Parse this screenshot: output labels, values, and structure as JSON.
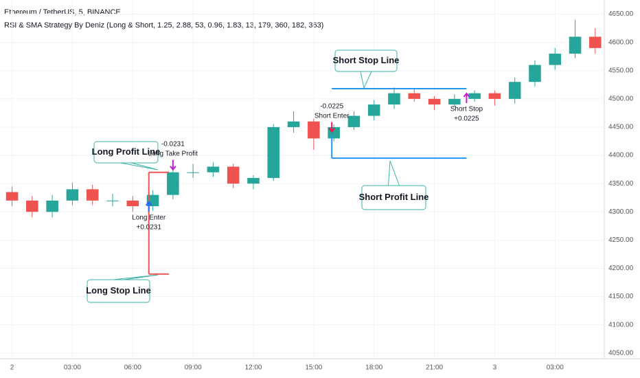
{
  "header": {
    "symbol": "Ethereum / TetherUS, 5, BINANCE",
    "indicator": "RSI & SMA Strategy By Deniz (Long & Short, 1.25, 2.88, 53, 0.96, 1.83, 13, 179, 360, 182, 363)"
  },
  "chart_data": {
    "type": "candlestick",
    "x": [
      0,
      1,
      2,
      3,
      4,
      5,
      6,
      7,
      8,
      9,
      10,
      11,
      12,
      13,
      14,
      15,
      16,
      17,
      18,
      19,
      20,
      21,
      22,
      23,
      24,
      25,
      26,
      27,
      28,
      29
    ],
    "open": [
      4335,
      4320,
      4300,
      4320,
      4340,
      4320,
      4320,
      4310,
      4330,
      4370,
      4370,
      4380,
      4350,
      4360,
      4450,
      4460,
      4430,
      4450,
      4470,
      4490,
      4510,
      4500,
      4490,
      4500,
      4510,
      4500,
      4530,
      4560,
      4580,
      4610
    ],
    "high": [
      4345,
      4328,
      4330,
      4352,
      4348,
      4332,
      4328,
      4338,
      4378,
      4385,
      4388,
      4385,
      4365,
      4455,
      4478,
      4465,
      4455,
      4478,
      4498,
      4520,
      4518,
      4505,
      4508,
      4515,
      4515,
      4538,
      4568,
      4590,
      4640,
      4625
    ],
    "low": [
      4310,
      4290,
      4290,
      4312,
      4312,
      4310,
      4300,
      4302,
      4322,
      4360,
      4362,
      4342,
      4340,
      4355,
      4440,
      4410,
      4425,
      4445,
      4462,
      4482,
      4495,
      4480,
      4485,
      4495,
      4488,
      4492,
      4522,
      4552,
      4572,
      4580
    ],
    "close": [
      4320,
      4300,
      4320,
      4340,
      4320,
      4320,
      4310,
      4330,
      4370,
      4370,
      4380,
      4350,
      4360,
      4450,
      4460,
      4430,
      4450,
      4470,
      4490,
      4510,
      4500,
      4490,
      4500,
      4510,
      4500,
      4530,
      4560,
      4580,
      4610,
      4590
    ],
    "up_color": "#26a69a",
    "down_color": "#ef5350",
    "xlim": [
      -0.6,
      29.45
    ],
    "ylim": [
      4040,
      4675
    ],
    "xticks": [
      {
        "value": 0,
        "label": "2"
      },
      {
        "value": 3,
        "label": "03:00"
      },
      {
        "value": 6,
        "label": "06:00"
      },
      {
        "value": 9,
        "label": "09:00"
      },
      {
        "value": 12,
        "label": "12:00"
      },
      {
        "value": 15,
        "label": "15:00"
      },
      {
        "value": 18,
        "label": "18:00"
      },
      {
        "value": 21,
        "label": "21:00"
      },
      {
        "value": 24,
        "label": "3"
      },
      {
        "value": 27,
        "label": "03:00"
      }
    ],
    "yticks": [
      {
        "value": 4050,
        "label": "4050.00"
      },
      {
        "value": 4100,
        "label": "4100.00"
      },
      {
        "value": 4150,
        "label": "4150.00"
      },
      {
        "value": 4200,
        "label": "4200.00"
      },
      {
        "value": 4250,
        "label": "4250.00"
      },
      {
        "value": 4300,
        "label": "4300.00"
      },
      {
        "value": 4350,
        "label": "4350.00"
      },
      {
        "value": 4400,
        "label": "4400.00"
      },
      {
        "value": 4450,
        "label": "4450.00"
      },
      {
        "value": 4500,
        "label": "4500.00"
      },
      {
        "value": 4550,
        "label": "4550.00"
      },
      {
        "value": 4600,
        "label": "4600.00"
      },
      {
        "value": 4650,
        "label": "4650.00"
      }
    ],
    "grid": true,
    "levels": [
      {
        "name": "Long Profit Line",
        "color": "#f05252",
        "value": 4370,
        "x": [
          6.8,
          7.8
        ]
      },
      {
        "name": "Long Stop Line",
        "color": "#f05252",
        "value": 4190,
        "x": [
          6.8,
          7.8
        ]
      },
      {
        "name": "Short Stop Line",
        "color": "#2196f3",
        "value": 4518,
        "x": [
          15.9,
          22.6
        ]
      },
      {
        "name": "Short Profit Line",
        "color": "#2196f3",
        "value": 4395,
        "x": [
          15.9,
          22.6
        ]
      }
    ],
    "signals": [
      {
        "text": [
          "Long Enter",
          "+0.0231"
        ],
        "x": 6.8,
        "value": 4320,
        "color": "#2962ff",
        "dir": "up"
      },
      {
        "text": [
          "-0.0231",
          "Long Take Profit"
        ],
        "x": 8.0,
        "value": 4370,
        "color": "#c21bd1",
        "dir": "down"
      },
      {
        "text": [
          "-0.0225",
          "Short Enter"
        ],
        "x": 15.9,
        "value": 4437,
        "color": "#f0134d",
        "dir": "down"
      },
      {
        "text": [
          "Short Stop",
          "+0.0225"
        ],
        "x": 22.6,
        "value": 4512,
        "color": "#c21bd1",
        "dir": "up"
      }
    ]
  }
}
